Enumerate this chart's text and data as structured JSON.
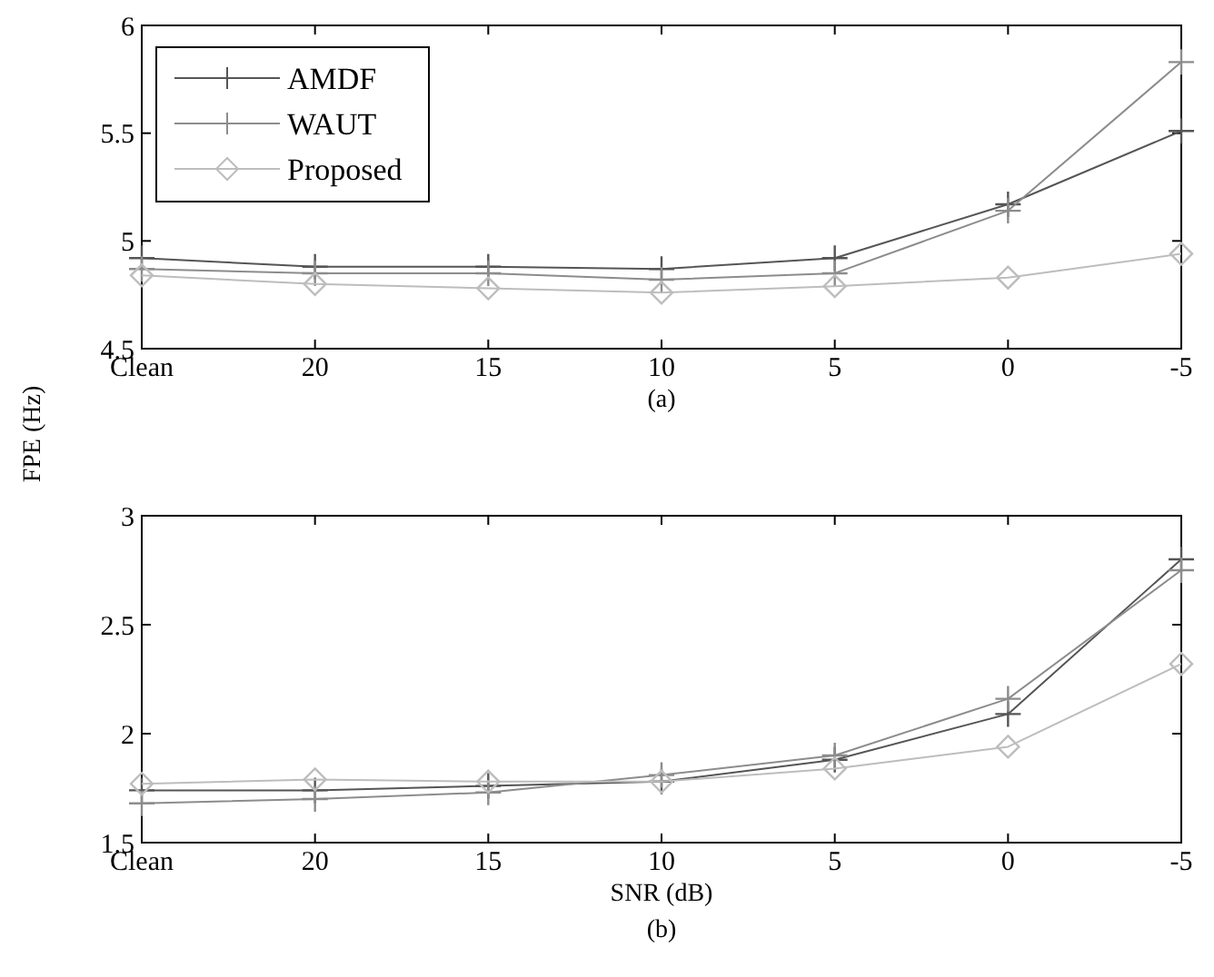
{
  "chart_data": [
    {
      "type": "line",
      "xlabel": "(a)",
      "ylabel": "FPE (Hz)",
      "categories": [
        "Clean",
        "20",
        "15",
        "10",
        "5",
        "0",
        "-5"
      ],
      "ylim": [
        4.5,
        6
      ],
      "yticks": [
        4.5,
        5,
        5.5,
        6
      ],
      "legend": "top left",
      "line_style": "solid",
      "series": [
        {
          "name": "AMDF",
          "color": "#555555",
          "marker": "cross",
          "values": [
            4.92,
            4.88,
            4.88,
            4.87,
            4.92,
            5.17,
            5.51
          ]
        },
        {
          "name": "WAUT",
          "color": "#8c8c8c",
          "marker": "cross",
          "values": [
            4.87,
            4.85,
            4.85,
            4.82,
            4.85,
            5.14,
            5.83
          ]
        },
        {
          "name": "Proposed",
          "color": "#bdbdbd",
          "marker": "diamond",
          "values": [
            4.84,
            4.8,
            4.78,
            4.76,
            4.79,
            4.83,
            4.94
          ]
        }
      ]
    },
    {
      "type": "line",
      "xlabel": "SNR (dB)",
      "annotations": [
        "(b)"
      ],
      "categories": [
        "Clean",
        "20",
        "15",
        "10",
        "5",
        "0",
        "-5"
      ],
      "ylim": [
        1.5,
        3
      ],
      "yticks": [
        1.5,
        2,
        2.5,
        3
      ],
      "legend": false,
      "line_style": "solid",
      "series": [
        {
          "color": "#555555",
          "marker": "cross",
          "values": [
            1.74,
            1.74,
            1.76,
            1.78,
            1.88,
            2.09,
            2.8
          ]
        },
        {
          "color": "#8c8c8c",
          "marker": "cross",
          "values": [
            1.68,
            1.7,
            1.73,
            1.81,
            1.9,
            2.16,
            2.75
          ]
        },
        {
          "color": "#bdbdbd",
          "marker": "diamond",
          "values": [
            1.77,
            1.79,
            1.78,
            1.78,
            1.84,
            1.94,
            2.32
          ]
        }
      ]
    }
  ]
}
